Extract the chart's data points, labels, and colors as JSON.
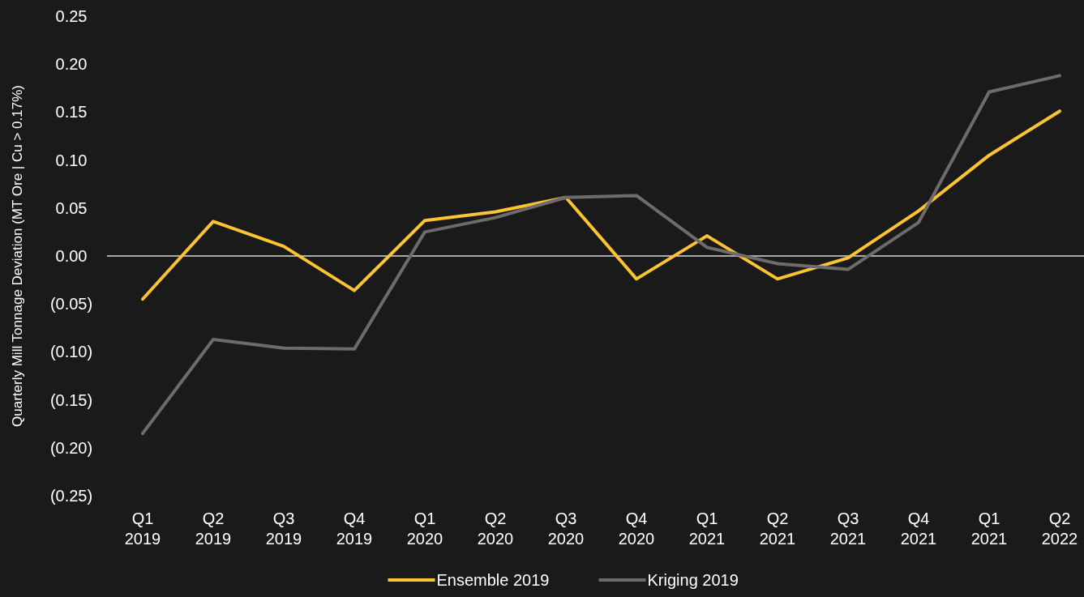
{
  "chart_data": {
    "type": "line",
    "ylabel": "Quarterly Mill Tonnage Deviation (MT Ore | Cu > 0.17%)",
    "categories": [
      "Q1 2019",
      "Q2 2019",
      "Q3 2019",
      "Q4 2019",
      "Q1 2020",
      "Q2 2020",
      "Q3 2020",
      "Q4 2020",
      "Q1 2021",
      "Q2 2021",
      "Q3 2021",
      "Q4 2021",
      "Q1 2021",
      "Q2 2022"
    ],
    "series": [
      {
        "name": "Ensemble 2019",
        "color": "#fcc332",
        "values": [
          -0.045,
          0.036,
          0.01,
          -0.036,
          0.037,
          0.046,
          0.061,
          -0.024,
          0.021,
          -0.024,
          -0.002,
          0.047,
          0.105,
          0.151
        ]
      },
      {
        "name": "Kriging 2019",
        "color": "#6f6b6b",
        "values": [
          -0.185,
          -0.087,
          -0.096,
          -0.097,
          0.025,
          0.04,
          0.061,
          0.063,
          0.009,
          -0.008,
          -0.014,
          0.035,
          0.171,
          0.188
        ]
      }
    ],
    "ylim": [
      -0.25,
      0.25
    ],
    "yticks": [
      {
        "value": -0.25,
        "label": "(0.25)"
      },
      {
        "value": -0.2,
        "label": "(0.20)"
      },
      {
        "value": -0.15,
        "label": "(0.15)"
      },
      {
        "value": -0.1,
        "label": "(0.10)"
      },
      {
        "value": -0.05,
        "label": "(0.05)"
      },
      {
        "value": 0,
        "label": "0.00"
      },
      {
        "value": 0.05,
        "label": "0.05"
      },
      {
        "value": 0.1,
        "label": "0.10"
      },
      {
        "value": 0.15,
        "label": "0.15"
      },
      {
        "value": 0.2,
        "label": "0.20"
      },
      {
        "value": 0.25,
        "label": "0.25"
      }
    ],
    "ref_lines": [
      {
        "axis": "y",
        "value": 0,
        "color": "#d9d9d9"
      }
    ],
    "grid": false,
    "legend": "bottom",
    "marker": "none",
    "line_style": "solid"
  }
}
